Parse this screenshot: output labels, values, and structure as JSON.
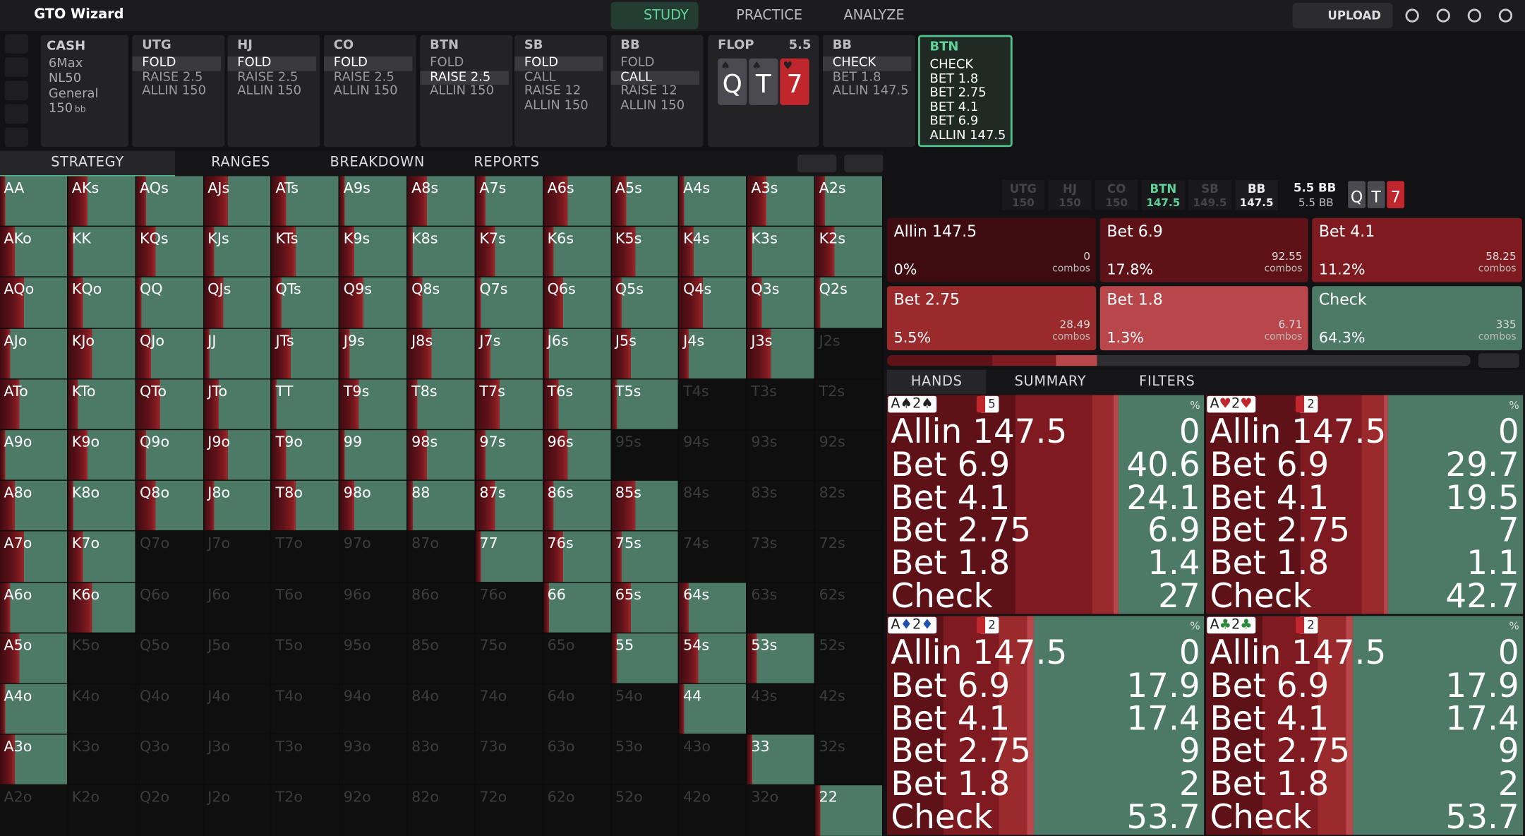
{
  "nav": {
    "logo": "GTO Wizard",
    "tabs": [
      "STUDY",
      "PRACTICE",
      "ANALYZE"
    ],
    "upload": "UPLOAD"
  },
  "game": {
    "title": "CASH",
    "items": [
      "6Max",
      "NL50",
      "General",
      "150"
    ],
    "stack_unit": "bb"
  },
  "preflop": [
    {
      "position": "UTG",
      "options": [
        "FOLD",
        "RAISE 2.5",
        "ALLIN 150"
      ],
      "selected": 0
    },
    {
      "position": "HJ",
      "options": [
        "FOLD",
        "RAISE 2.5",
        "ALLIN 150"
      ],
      "selected": 0
    },
    {
      "position": "CO",
      "options": [
        "FOLD",
        "RAISE 2.5",
        "ALLIN 150"
      ],
      "selected": 0
    },
    {
      "position": "BTN",
      "options": [
        "FOLD",
        "RAISE 2.5",
        "ALLIN 150"
      ],
      "selected": 1
    },
    {
      "position": "SB",
      "options": [
        "FOLD",
        "CALL",
        "RAISE 12",
        "ALLIN 150"
      ],
      "selected": 0
    },
    {
      "position": "BB",
      "options": [
        "FOLD",
        "CALL",
        "RAISE 12",
        "ALLIN 150"
      ],
      "selected": 1
    }
  ],
  "flop": {
    "label": "FLOP",
    "pot": "5.5",
    "cards": [
      {
        "rank": "Q",
        "suit": "♠",
        "color": "#4a4a50"
      },
      {
        "rank": "T",
        "suit": "♠",
        "color": "#4a4a50"
      },
      {
        "rank": "7",
        "suit": "♥",
        "color": "#c0272d"
      }
    ]
  },
  "postflop": [
    {
      "position": "BB",
      "options": [
        "CHECK",
        "BET 1.8",
        "ALLIN 147.5"
      ],
      "selected": 0
    },
    {
      "position": "BTN",
      "options": [
        "CHECK",
        "BET 1.8",
        "BET 2.75",
        "BET 4.1",
        "BET 6.9",
        "ALLIN 147.5"
      ],
      "active": true
    }
  ],
  "view_tabs": [
    "STRATEGY",
    "RANGES",
    "BREAKDOWN",
    "REPORTS"
  ],
  "matrix": {
    "rows": [
      [
        "AA",
        "AKs",
        "AQs",
        "AJs",
        "ATs",
        "A9s",
        "A8s",
        "A7s",
        "A6s",
        "A5s",
        "A4s",
        "A3s",
        "A2s"
      ],
      [
        "AKo",
        "KK",
        "KQs",
        "KJs",
        "KTs",
        "K9s",
        "K8s",
        "K7s",
        "K6s",
        "K5s",
        "K4s",
        "K3s",
        "K2s"
      ],
      [
        "AQo",
        "KQo",
        "QQ",
        "QJs",
        "QTs",
        "Q9s",
        "Q8s",
        "Q7s",
        "Q6s",
        "Q5s",
        "Q4s",
        "Q3s",
        "Q2s"
      ],
      [
        "AJo",
        "KJo",
        "QJo",
        "JJ",
        "JTs",
        "J9s",
        "J8s",
        "J7s",
        "J6s",
        "J5s",
        "J4s",
        "J3s",
        "J2s"
      ],
      [
        "ATo",
        "KTo",
        "QTo",
        "JTo",
        "TT",
        "T9s",
        "T8s",
        "T7s",
        "T6s",
        "T5s",
        "T4s",
        "T3s",
        "T2s"
      ],
      [
        "A9o",
        "K9o",
        "Q9o",
        "J9o",
        "T9o",
        "99",
        "98s",
        "97s",
        "96s",
        "95s",
        "94s",
        "93s",
        "92s"
      ],
      [
        "A8o",
        "K8o",
        "Q8o",
        "J8o",
        "T8o",
        "98o",
        "88",
        "87s",
        "86s",
        "85s",
        "84s",
        "83s",
        "82s"
      ],
      [
        "A7o",
        "K7o",
        "Q7o",
        "J7o",
        "T7o",
        "97o",
        "87o",
        "77",
        "76s",
        "75s",
        "74s",
        "73s",
        "72s"
      ],
      [
        "A6o",
        "K6o",
        "Q6o",
        "J6o",
        "T6o",
        "96o",
        "86o",
        "76o",
        "66",
        "65s",
        "64s",
        "63s",
        "62s"
      ],
      [
        "A5o",
        "K5o",
        "Q5o",
        "J5o",
        "T5o",
        "95o",
        "85o",
        "75o",
        "65o",
        "55",
        "54s",
        "53s",
        "52s"
      ],
      [
        "A4o",
        "K4o",
        "Q4o",
        "J4o",
        "T4o",
        "94o",
        "84o",
        "74o",
        "64o",
        "54o",
        "44",
        "43s",
        "42s"
      ],
      [
        "A3o",
        "K3o",
        "Q3o",
        "J3o",
        "T3o",
        "93o",
        "83o",
        "73o",
        "63o",
        "53o",
        "43o",
        "33",
        "32s"
      ],
      [
        "A2o",
        "K2o",
        "Q2o",
        "J2o",
        "T2o",
        "92o",
        "82o",
        "72o",
        "62o",
        "52o",
        "42o",
        "32o",
        "22"
      ]
    ],
    "in_range": [
      [
        true,
        true,
        true,
        true,
        true,
        true,
        true,
        true,
        true,
        true,
        true,
        true,
        true
      ],
      [
        true,
        true,
        true,
        true,
        true,
        true,
        true,
        true,
        true,
        true,
        true,
        true,
        true
      ],
      [
        true,
        true,
        true,
        true,
        true,
        true,
        true,
        true,
        true,
        true,
        true,
        true,
        true
      ],
      [
        true,
        true,
        true,
        true,
        true,
        true,
        true,
        true,
        true,
        true,
        true,
        true,
        false
      ],
      [
        true,
        true,
        true,
        true,
        true,
        true,
        true,
        true,
        true,
        true,
        false,
        false,
        false
      ],
      [
        true,
        true,
        true,
        true,
        true,
        true,
        true,
        true,
        true,
        false,
        false,
        false,
        false
      ],
      [
        true,
        true,
        true,
        true,
        true,
        true,
        true,
        true,
        true,
        true,
        false,
        false,
        false
      ],
      [
        true,
        true,
        false,
        false,
        false,
        false,
        false,
        true,
        true,
        true,
        false,
        false,
        false
      ],
      [
        true,
        true,
        false,
        false,
        false,
        false,
        false,
        false,
        true,
        true,
        true,
        false,
        false
      ],
      [
        true,
        false,
        false,
        false,
        false,
        false,
        false,
        false,
        false,
        true,
        true,
        true,
        false
      ],
      [
        true,
        false,
        false,
        false,
        false,
        false,
        false,
        false,
        false,
        false,
        true,
        false,
        false
      ],
      [
        true,
        false,
        false,
        false,
        false,
        false,
        false,
        false,
        false,
        false,
        false,
        true,
        false
      ],
      [
        false,
        false,
        false,
        false,
        false,
        false,
        false,
        false,
        false,
        false,
        false,
        false,
        true
      ]
    ]
  },
  "positions": [
    {
      "name": "UTG",
      "stack": "150"
    },
    {
      "name": "HJ",
      "stack": "150"
    },
    {
      "name": "CO",
      "stack": "150"
    },
    {
      "name": "BTN",
      "stack": "147.5",
      "active": true
    },
    {
      "name": "SB",
      "stack": "149.5"
    },
    {
      "name": "BB",
      "stack": "147.5",
      "live": true
    }
  ],
  "pot": {
    "top": "5.5 BB",
    "bottom": "5.5 BB"
  },
  "strategy": {
    "combos_label": "combos",
    "actions": [
      {
        "action": "Allin 147.5",
        "freq": "0%",
        "combos": "0",
        "color": "#3d0b10"
      },
      {
        "action": "Bet 6.9",
        "freq": "17.8%",
        "combos": "92.55",
        "color": "#5e1218"
      },
      {
        "action": "Bet 4.1",
        "freq": "11.2%",
        "combos": "58.25",
        "color": "#7e1a20"
      },
      {
        "action": "Bet 2.75",
        "freq": "5.5%",
        "combos": "28.49",
        "color": "#9a2a2c"
      },
      {
        "action": "Bet 1.8",
        "freq": "1.3%",
        "combos": "6.71",
        "color": "#b8464a"
      },
      {
        "action": "Check",
        "freq": "64.3%",
        "combos": "335",
        "color": "#4c7a66"
      }
    ]
  },
  "hand_tabs": [
    "HANDS",
    "SUMMARY",
    "FILTERS"
  ],
  "hands": [
    {
      "cards": [
        {
          "rank": "A",
          "suit": "♠"
        },
        {
          "rank": "2",
          "suit": "♠"
        }
      ],
      "blocker": "5",
      "pct": "%",
      "rows": [
        {
          "action": "Allin 147.5",
          "value": 0
        },
        {
          "action": "Bet 6.9",
          "value": 40.6
        },
        {
          "action": "Bet 4.1",
          "value": 24.1
        },
        {
          "action": "Bet 2.75",
          "value": 6.9
        },
        {
          "action": "Bet 1.8",
          "value": 1.4
        },
        {
          "action": "Check",
          "value": 27
        }
      ]
    },
    {
      "cards": [
        {
          "rank": "A",
          "suit": "♥"
        },
        {
          "rank": "2",
          "suit": "♥"
        }
      ],
      "blocker": "2",
      "pct": "%",
      "rows": [
        {
          "action": "Allin 147.5",
          "value": 0
        },
        {
          "action": "Bet 6.9",
          "value": 29.7
        },
        {
          "action": "Bet 4.1",
          "value": 19.5
        },
        {
          "action": "Bet 2.75",
          "value": 7
        },
        {
          "action": "Bet 1.8",
          "value": 1.1
        },
        {
          "action": "Check",
          "value": 42.7
        }
      ]
    },
    {
      "cards": [
        {
          "rank": "A",
          "suit": "♦"
        },
        {
          "rank": "2",
          "suit": "♦"
        }
      ],
      "blocker": "2",
      "pct": "%",
      "rows": [
        {
          "action": "Allin 147.5",
          "value": 0
        },
        {
          "action": "Bet 6.9",
          "value": 17.9
        },
        {
          "action": "Bet 4.1",
          "value": 17.4
        },
        {
          "action": "Bet 2.75",
          "value": 9
        },
        {
          "action": "Bet 1.8",
          "value": 2
        },
        {
          "action": "Check",
          "value": 53.7
        }
      ]
    },
    {
      "cards": [
        {
          "rank": "A",
          "suit": "♣"
        },
        {
          "rank": "2",
          "suit": "♣"
        }
      ],
      "blocker": "2",
      "pct": "%",
      "rows": [
        {
          "action": "Allin 147.5",
          "value": 0
        },
        {
          "action": "Bet 6.9",
          "value": 17.9
        },
        {
          "action": "Bet 4.1",
          "value": 17.4
        },
        {
          "action": "Bet 2.75",
          "value": 9
        },
        {
          "action": "Bet 1.8",
          "value": 2
        },
        {
          "action": "Check",
          "value": 53.7
        }
      ]
    }
  ]
}
